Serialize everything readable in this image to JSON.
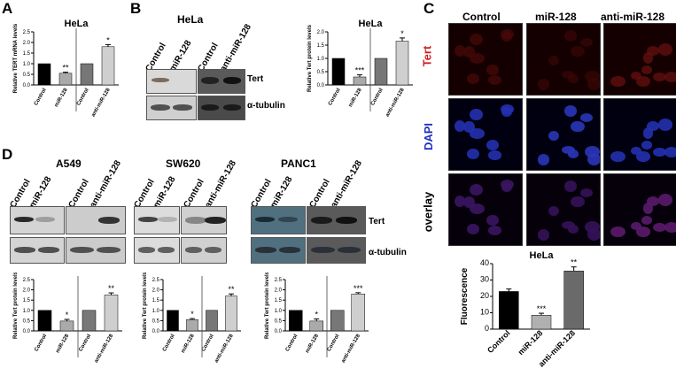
{
  "panels": {
    "A": {
      "letter": "A",
      "title": "HeLa"
    },
    "B": {
      "letter": "B",
      "blot_title": "HeLa",
      "chart_title": "HeLa",
      "lanes": [
        "Control",
        "miR-128",
        "Control",
        "anti-miR-128"
      ],
      "rows": [
        "Tert",
        "α-tubulin"
      ]
    },
    "C": {
      "letter": "C",
      "columns": [
        "Control",
        "miR-128",
        "anti-miR-128"
      ],
      "rows": [
        "Tert",
        "DAPI",
        "overlay"
      ],
      "colors": {
        "Tert": "#d02020",
        "DAPI": "#2030c0",
        "overlay": "#000000"
      },
      "chart_title": "HeLa"
    },
    "D": {
      "letter": "D",
      "cell_lines": [
        "A549",
        "SW620",
        "PANC1"
      ],
      "lanes": [
        "Control",
        "miR-128",
        "Control",
        "anti-miR-128"
      ],
      "rows": [
        "Tert",
        "α-tubulin"
      ]
    }
  },
  "chart_data": [
    {
      "id": "A",
      "type": "bar",
      "title": "HeLa",
      "ylabel": "Relative TERT mRNA levels",
      "categories": [
        "Control",
        "miR-128",
        "Control",
        "anti-miR-128"
      ],
      "values": [
        1.0,
        0.55,
        1.0,
        1.8
      ],
      "errors": [
        0,
        0.05,
        0,
        0.1
      ],
      "sig": [
        "",
        "**",
        "",
        "*"
      ],
      "ylim": [
        0,
        2.5
      ],
      "yticks": [
        "0.0",
        "0.5",
        "1.0",
        "1.5",
        "2.0",
        "2.5"
      ],
      "colors": [
        "#000000",
        "#aaaaaa",
        "#777777",
        "#cfcfcf"
      ]
    },
    {
      "id": "B",
      "type": "bar",
      "title": "HeLa",
      "ylabel": "Relative Tert protein levels",
      "categories": [
        "Control",
        "miR-128",
        "Control",
        "anti-miR-128"
      ],
      "values": [
        1.0,
        0.3,
        1.0,
        1.65
      ],
      "errors": [
        0,
        0.08,
        0,
        0.12
      ],
      "sig": [
        "",
        "***",
        "",
        "*"
      ],
      "ylim": [
        0,
        2.0
      ],
      "yticks": [
        "0.0",
        "0.5",
        "1.0",
        "1.5",
        "2.0"
      ],
      "colors": [
        "#000000",
        "#aaaaaa",
        "#777777",
        "#cfcfcf"
      ]
    },
    {
      "id": "C",
      "type": "bar",
      "title": "HeLa",
      "ylabel": "Fluorescence",
      "categories": [
        "Control",
        "miR-128",
        "anti-miR-128"
      ],
      "values": [
        23,
        8.5,
        35.5
      ],
      "errors": [
        1.5,
        1.2,
        2.5
      ],
      "sig": [
        "",
        "***",
        "**"
      ],
      "ylim": [
        0,
        40
      ],
      "yticks": [
        "0",
        "10",
        "20",
        "30",
        "40"
      ],
      "colors": [
        "#000000",
        "#b0b0b0",
        "#6a6a6a"
      ]
    },
    {
      "id": "D1",
      "type": "bar",
      "title": "",
      "ylabel": "Relative Tert protein levels",
      "categories": [
        "Control",
        "miR-128",
        "Control",
        "anti-miR-128"
      ],
      "values": [
        1.0,
        0.48,
        1.0,
        1.75
      ],
      "errors": [
        0,
        0.08,
        0,
        0.1
      ],
      "sig": [
        "",
        "*",
        "",
        "**"
      ],
      "ylim": [
        0,
        2.5
      ],
      "yticks": [
        "0.0",
        "0.5",
        "1.0",
        "1.5",
        "2.0",
        "2.5"
      ],
      "colors": [
        "#000000",
        "#aaaaaa",
        "#777777",
        "#cfcfcf"
      ]
    },
    {
      "id": "D2",
      "type": "bar",
      "title": "",
      "ylabel": "Relative Tert protein levels",
      "categories": [
        "Control",
        "miR-128",
        "Control",
        "anti-miR-128"
      ],
      "values": [
        1.0,
        0.55,
        1.0,
        1.7
      ],
      "errors": [
        0,
        0.05,
        0,
        0.1
      ],
      "sig": [
        "",
        "*",
        "",
        "**"
      ],
      "ylim": [
        0,
        2.5
      ],
      "yticks": [
        "0.0",
        "0.5",
        "1.0",
        "1.5",
        "2.0",
        "2.5"
      ],
      "colors": [
        "#000000",
        "#aaaaaa",
        "#777777",
        "#cfcfcf"
      ]
    },
    {
      "id": "D3",
      "type": "bar",
      "title": "",
      "ylabel": "Relative Tert protein levels",
      "categories": [
        "Control",
        "miR-128",
        "Control",
        "anti-miR-128"
      ],
      "values": [
        1.0,
        0.48,
        1.0,
        1.8
      ],
      "errors": [
        0,
        0.1,
        0,
        0.06
      ],
      "sig": [
        "",
        "*",
        "",
        "***"
      ],
      "ylim": [
        0,
        2.5
      ],
      "yticks": [
        "0.0",
        "0.5",
        "1.0",
        "1.5",
        "2.0",
        "2.5"
      ],
      "colors": [
        "#000000",
        "#aaaaaa",
        "#777777",
        "#cfcfcf"
      ]
    }
  ]
}
